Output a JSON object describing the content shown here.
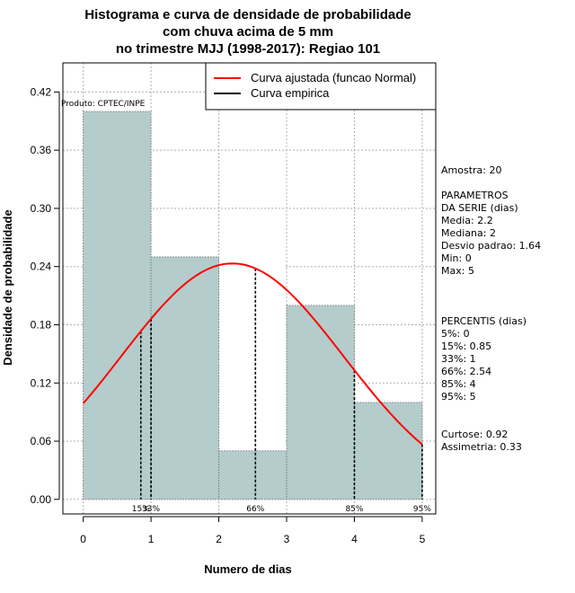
{
  "chart_data": {
    "type": "bar",
    "title_lines": [
      "Histograma e curva de densidade de probabilidade",
      "com chuva acima de 5 mm",
      "no trimestre MJJ (1998-2017): Regiao 101"
    ],
    "xlabel": "Numero de dias",
    "ylabel": "Densidade de probabilidade",
    "xlim": [
      -0.3,
      5.2
    ],
    "ylim": [
      -0.015,
      0.45
    ],
    "x_ticks": [
      0,
      1,
      2,
      3,
      4,
      5
    ],
    "y_ticks": [
      0.0,
      0.06,
      0.12,
      0.18,
      0.24,
      0.3,
      0.36,
      0.42
    ],
    "y_tick_labels": [
      "0.00",
      "0.06",
      "0.12",
      "0.18",
      "0.24",
      "0.30",
      "0.36",
      "0.42"
    ],
    "histogram": {
      "bins": [
        [
          0,
          1
        ],
        [
          1,
          2
        ],
        [
          2,
          3
        ],
        [
          3,
          4
        ],
        [
          4,
          5
        ]
      ],
      "bin_groups": [
        [
          0,
          1
        ],
        [
          1,
          2
        ],
        [
          2,
          2
        ],
        [
          2,
          3
        ],
        [
          3,
          4
        ],
        [
          4,
          5
        ]
      ],
      "densities": [
        0.4,
        0.25,
        0.05,
        0.05,
        0.2,
        0.1
      ],
      "bar_bins": [
        [
          0,
          1
        ],
        [
          1,
          2
        ],
        [
          2,
          2.5
        ],
        [
          2.5,
          3
        ],
        [
          3,
          4
        ],
        [
          4,
          5
        ]
      ],
      "fill": "#b4cccc"
    },
    "normal_fit": {
      "mean": 2.2,
      "sd": 1.64,
      "color": "#ff0000",
      "x_from": 0,
      "x_to": 5
    },
    "percentile_lines": [
      {
        "x": 0.85,
        "label": "15%"
      },
      {
        "x": 1.0,
        "label": "33%"
      },
      {
        "x": 2.54,
        "label": "66%"
      },
      {
        "x": 4.0,
        "label": "85%"
      },
      {
        "x": 5.0,
        "label": "95%"
      }
    ],
    "legend": [
      {
        "label": "Curva ajustada (funcao Normal)",
        "color": "#ff0000"
      },
      {
        "label": "Curva empirica",
        "color": "#000000"
      }
    ]
  },
  "product_label": "Produto: CPTEC/INPE",
  "stats_panel": [
    "Amostra: 20",
    "",
    " PARAMETROS",
    "DA SERIE (dias)",
    "   Media: 2.2",
    "   Mediana: 2",
    "   Desvio padrao: 1.64",
    "   Min: 0",
    "   Max: 5",
    "",
    "",
    "",
    "PERCENTIS (dias)",
    "    5%: 0",
    "    15%: 0.85",
    "    33%: 1",
    "    66%: 2.54",
    "    85%: 4",
    "    95%: 5",
    "",
    "",
    "    Curtose: 0.92",
    "Assimetria: 0.33"
  ]
}
